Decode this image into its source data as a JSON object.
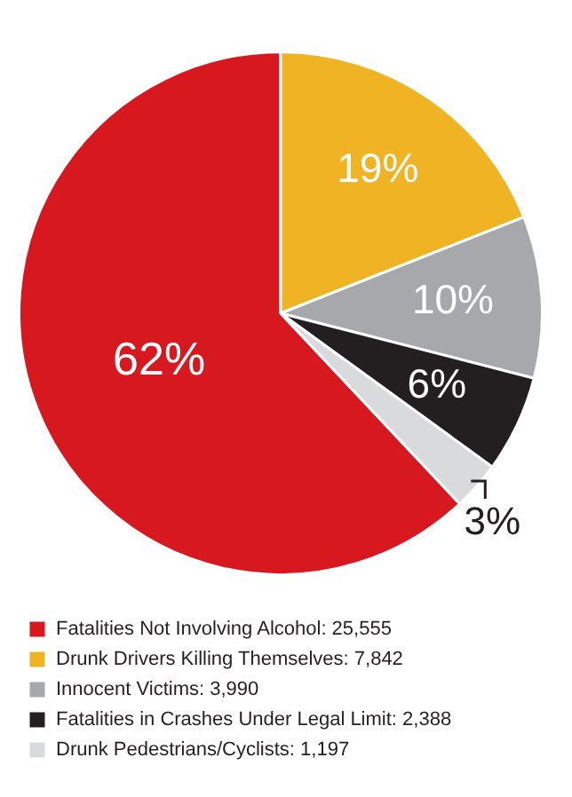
{
  "chart_data": {
    "type": "pie",
    "categories": [
      "Fatalities Not Involving Alcohol: 25,555",
      "Drunk Drivers Killing Themselves: 7,842",
      "Innocent Victims: 3,990",
      "Fatalities in Crashes Under Legal Limit: 2,388",
      "Drunk Pedestrians/Cyclists: 1,197"
    ],
    "values": [
      62,
      19,
      10,
      6,
      3
    ],
    "value_labels": [
      "62%",
      "19%",
      "10%",
      "6%",
      "3%"
    ],
    "colors": [
      "#d7191f",
      "#f0b323",
      "#a7a8ab",
      "#231f20",
      "#d9dadb"
    ],
    "legend": "bottom"
  }
}
